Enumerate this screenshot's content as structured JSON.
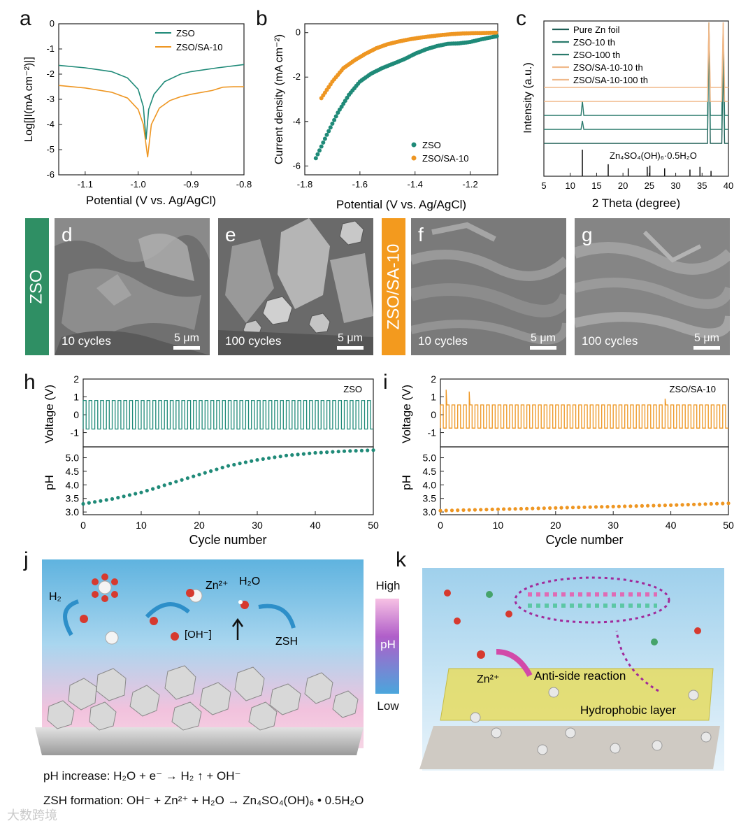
{
  "colors": {
    "zso": "#1f8a78",
    "zso_sa": "#ee9622",
    "green_tag": "#2f8f64",
    "orange_tag": "#f39a1e",
    "xrd_zn": "#1e5e55",
    "xrd_zso": "#2a7a6c",
    "xrd_sa": "#f0b98a"
  },
  "panel_a": {
    "letter": "a",
    "xlabel": "Potential (V vs. Ag/AgCl)",
    "ylabel": "Log[|I(mA cm⁻²)|]",
    "xticks": [
      "-1.1",
      "-1.0",
      "-0.9",
      "-0.8"
    ],
    "yticks": [
      "0",
      "-1",
      "-2",
      "-3",
      "-4",
      "-5",
      "-6"
    ],
    "legend": [
      "ZSO",
      "ZSO/SA-10"
    ]
  },
  "panel_b": {
    "letter": "b",
    "xlabel": "Potential (V vs. Ag/AgCl)",
    "ylabel": "Current density (mA cm⁻²)",
    "xticks": [
      "-1.8",
      "-1.6",
      "-1.4",
      "-1.2"
    ],
    "yticks": [
      "0",
      "-2",
      "-4",
      "-6"
    ],
    "legend": [
      "ZSO",
      "ZSO/SA-10"
    ]
  },
  "panel_c": {
    "letter": "c",
    "xlabel": "2 Theta (degree)",
    "ylabel": "Intensity (a.u.)",
    "xticks": [
      "5",
      "10",
      "15",
      "20",
      "25",
      "30",
      "35",
      "40"
    ],
    "legend": [
      "Pure Zn foil",
      "ZSO-10 th",
      "ZSO-100 th",
      "ZSO/SA-10-10 th",
      "ZSO/SA-10-100 th"
    ],
    "ref_label": "Zn₄SO₄(OH)₆·0.5H₂O"
  },
  "sem": {
    "zso_tag": "ZSO",
    "sa_tag": "ZSO/SA-10",
    "images": [
      {
        "letter": "d",
        "label": "10 cycles",
        "scale": "5 μm"
      },
      {
        "letter": "e",
        "label": "100 cycles",
        "scale": "5 μm"
      },
      {
        "letter": "f",
        "label": "10 cycles",
        "scale": "5 μm"
      },
      {
        "letter": "g",
        "label": "100 cycles",
        "scale": "5 μm"
      }
    ]
  },
  "panel_h": {
    "letter": "h",
    "tag": "ZSO",
    "v_label": "Voltage (V)",
    "ph_label": "pH",
    "xlabel": "Cycle number",
    "v_ticks": [
      "2",
      "1",
      "0",
      "-1"
    ],
    "ph_ticks": [
      "5.0",
      "4.5",
      "4.0",
      "3.5",
      "3.0"
    ],
    "xticks": [
      "0",
      "10",
      "20",
      "30",
      "40",
      "50"
    ]
  },
  "panel_i": {
    "letter": "i",
    "tag": "ZSO/SA-10",
    "v_label": "Voltage (V)",
    "ph_label": "pH",
    "xlabel": "Cycle number",
    "v_ticks": [
      "2",
      "1",
      "0",
      "-1"
    ],
    "ph_ticks": [
      "5.0",
      "4.5",
      "4.0",
      "3.5",
      "3.0"
    ],
    "xticks": [
      "0",
      "10",
      "20",
      "30",
      "40",
      "50"
    ]
  },
  "panel_j": {
    "letter": "j",
    "h2": "H₂",
    "zn": "Zn²⁺",
    "h2o": "H₂O",
    "oh": "[OH⁻]",
    "zsh": "ZSH",
    "eq1": "pH increase: H₂O + e⁻ → H₂ ↑ + OH⁻",
    "eq2": "ZSH formation: OH⁻ + Zn²⁺ + H₂O → Zn₄SO₄(OH)₆ • 0.5H₂O"
  },
  "ph_scale": {
    "high": "High",
    "mid": "pH",
    "low": "Low"
  },
  "panel_k": {
    "letter": "k",
    "zn": "Zn²⁺",
    "anti": "Anti-side reaction",
    "hydro": "Hydrophobic layer"
  },
  "watermark": "大数跨境",
  "chart_data": [
    {
      "type": "line",
      "title": "a",
      "xlabel": "Potential (V vs. Ag/AgCl)",
      "ylabel": "Log[|I(mA cm⁻²)|]",
      "xlim": [
        -1.15,
        -0.8
      ],
      "ylim": [
        -6,
        0
      ],
      "series": [
        {
          "name": "ZSO",
          "x": [
            -1.15,
            -1.1,
            -1.05,
            -1.02,
            -1.0,
            -0.99,
            -0.985,
            -0.98,
            -0.97,
            -0.95,
            -0.92,
            -0.9,
            -0.85,
            -0.8
          ],
          "y": [
            -1.65,
            -1.75,
            -1.9,
            -2.15,
            -2.6,
            -3.3,
            -4.6,
            -3.4,
            -2.8,
            -2.3,
            -2.0,
            -1.9,
            -1.75,
            -1.62
          ]
        },
        {
          "name": "ZSO/SA-10",
          "x": [
            -1.15,
            -1.1,
            -1.05,
            -1.02,
            -1.0,
            -0.99,
            -0.982,
            -0.975,
            -0.96,
            -0.94,
            -0.92,
            -0.9,
            -0.86,
            -0.84,
            -0.82,
            -0.8
          ],
          "y": [
            -2.45,
            -2.55,
            -2.72,
            -2.95,
            -3.4,
            -4.0,
            -5.3,
            -4.0,
            -3.35,
            -3.05,
            -2.9,
            -2.8,
            -2.65,
            -2.52,
            -2.5,
            -2.5
          ]
        }
      ]
    },
    {
      "type": "scatter",
      "title": "b",
      "xlabel": "Potential (V vs. Ag/AgCl)",
      "ylabel": "Current density (mA cm⁻²)",
      "xlim": [
        -1.8,
        -1.1
      ],
      "ylim": [
        -6.4,
        0.4
      ],
      "series": [
        {
          "name": "ZSO",
          "x": [
            -1.76,
            -1.72,
            -1.68,
            -1.64,
            -1.6,
            -1.56,
            -1.52,
            -1.48,
            -1.44,
            -1.4,
            -1.36,
            -1.32,
            -1.28,
            -1.24,
            -1.2,
            -1.16,
            -1.12,
            -1.1
          ],
          "y": [
            -5.65,
            -4.6,
            -3.6,
            -2.8,
            -2.2,
            -1.85,
            -1.6,
            -1.4,
            -1.2,
            -0.95,
            -0.75,
            -0.6,
            -0.5,
            -0.48,
            -0.42,
            -0.3,
            -0.2,
            -0.15
          ]
        },
        {
          "name": "ZSO/SA-10",
          "x": [
            -1.74,
            -1.7,
            -1.66,
            -1.62,
            -1.58,
            -1.54,
            -1.5,
            -1.46,
            -1.42,
            -1.38,
            -1.34,
            -1.3,
            -1.26,
            -1.22,
            -1.18,
            -1.14,
            -1.1
          ],
          "y": [
            -2.95,
            -2.2,
            -1.6,
            -1.25,
            -0.95,
            -0.7,
            -0.52,
            -0.4,
            -0.3,
            -0.22,
            -0.16,
            -0.1,
            -0.06,
            -0.03,
            -0.02,
            -0.01,
            0.0
          ]
        }
      ]
    },
    {
      "type": "line",
      "title": "c",
      "xlabel": "2 Theta (degree)",
      "ylabel": "Intensity (a.u.)",
      "xlim": [
        5,
        40
      ],
      "series": [
        {
          "name": "Pure Zn foil",
          "baseline": 0,
          "peaks": [
            [
              36.3,
              8.0
            ],
            [
              39.0,
              6.0
            ]
          ]
        },
        {
          "name": "ZSO-10 th",
          "baseline": 1,
          "peaks": [
            [
              12.3,
              0.6
            ],
            [
              36.3,
              8.0
            ],
            [
              39.0,
              6.0
            ]
          ]
        },
        {
          "name": "ZSO-100 th",
          "baseline": 2,
          "peaks": [
            [
              12.3,
              1.0
            ],
            [
              36.3,
              8.0
            ],
            [
              39.0,
              6.0
            ]
          ]
        },
        {
          "name": "ZSO/SA-10-10 th",
          "baseline": 3,
          "peaks": [
            [
              36.3,
              8.0
            ],
            [
              39.0,
              6.0
            ]
          ]
        },
        {
          "name": "ZSO/SA-10-100 th",
          "baseline": 4,
          "peaks": [
            [
              36.3,
              9.0
            ],
            [
              39.0,
              6.0
            ]
          ]
        }
      ],
      "reference": {
        "name": "Zn₄SO₄(OH)₆·0.5H₂O",
        "peaks": [
          [
            12.3,
            1.0
          ],
          [
            17.2,
            0.45
          ],
          [
            21.0,
            0.3
          ],
          [
            24.6,
            0.35
          ],
          [
            25.1,
            0.4
          ],
          [
            27.9,
            0.3
          ],
          [
            32.7,
            0.25
          ],
          [
            34.6,
            0.35
          ],
          [
            36.7,
            0.2
          ]
        ]
      }
    },
    {
      "type": "line",
      "title": "h",
      "tag": "ZSO",
      "xlabel": "Cycle number",
      "xlim": [
        0,
        50
      ],
      "voltage": {
        "ylabel": "Voltage (V)",
        "ylim": [
          -1.8,
          2.0
        ],
        "high": 0.8,
        "low": -0.8
      },
      "ph": {
        "ylabel": "pH",
        "ylim": [
          2.9,
          5.4
        ],
        "x": [
          0,
          5,
          10,
          15,
          20,
          25,
          30,
          35,
          40,
          45,
          50
        ],
        "y": [
          3.3,
          3.48,
          3.72,
          4.05,
          4.38,
          4.7,
          4.92,
          5.08,
          5.18,
          5.24,
          5.28
        ]
      }
    },
    {
      "type": "line",
      "title": "i",
      "tag": "ZSO/SA-10",
      "xlabel": "Cycle number",
      "xlim": [
        0,
        50
      ],
      "voltage": {
        "ylabel": "Voltage (V)",
        "ylim": [
          -1.8,
          2.0
        ],
        "high": 0.55,
        "low": -0.75,
        "spikes": [
          [
            1,
            1.4
          ],
          [
            5,
            1.3
          ],
          [
            39,
            0.9
          ]
        ]
      },
      "ph": {
        "ylabel": "pH",
        "ylim": [
          2.9,
          5.4
        ],
        "x": [
          0,
          10,
          20,
          30,
          40,
          50
        ],
        "y": [
          3.05,
          3.1,
          3.15,
          3.2,
          3.25,
          3.32
        ]
      }
    }
  ]
}
